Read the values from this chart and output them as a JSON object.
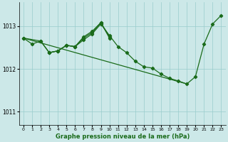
{
  "xlabel": "Graphe pression niveau de la mer (hPa)",
  "bg_color": "#cce8e8",
  "grid_color": "#99cccc",
  "line_color": "#1a6b1a",
  "xlim": [
    -0.5,
    23.5
  ],
  "ylim": [
    1010.7,
    1013.55
  ],
  "yticks": [
    1011,
    1012,
    1013
  ],
  "xticks": [
    0,
    1,
    2,
    3,
    4,
    5,
    6,
    7,
    8,
    9,
    10,
    11,
    12,
    13,
    14,
    15,
    16,
    17,
    18,
    19,
    20,
    21,
    22,
    23
  ],
  "series": [
    {
      "x": [
        0,
        1,
        2,
        3,
        4,
        5,
        6,
        7,
        8,
        9,
        10,
        11,
        12,
        13,
        14,
        15,
        16,
        17,
        18,
        19,
        20,
        21,
        22,
        23
      ],
      "y": [
        1012.72,
        1012.58,
        1012.65,
        1012.38,
        1012.42,
        1012.55,
        1012.52,
        1012.68,
        1012.82,
        1013.05,
        1012.78,
        1012.52,
        1012.38,
        1012.18,
        1012.05,
        1012.02,
        1011.88,
        1011.78,
        1011.72,
        1011.65,
        1011.82,
        1012.58,
        1013.05,
        1013.25
      ]
    },
    {
      "x": [
        0,
        19
      ],
      "y": [
        1012.72,
        1011.65
      ],
      "no_markers": true
    },
    {
      "x": [
        0,
        2,
        3,
        4,
        5,
        6,
        7,
        8,
        9,
        10
      ],
      "y": [
        1012.72,
        1012.65,
        1012.38,
        1012.42,
        1012.55,
        1012.52,
        1012.75,
        1012.88,
        1013.08,
        1012.75
      ]
    },
    {
      "x": [
        3,
        4,
        5,
        6,
        7,
        8,
        9,
        10
      ],
      "y": [
        1012.38,
        1012.42,
        1012.55,
        1012.52,
        1012.72,
        1012.85,
        1013.08,
        1012.72
      ]
    }
  ]
}
